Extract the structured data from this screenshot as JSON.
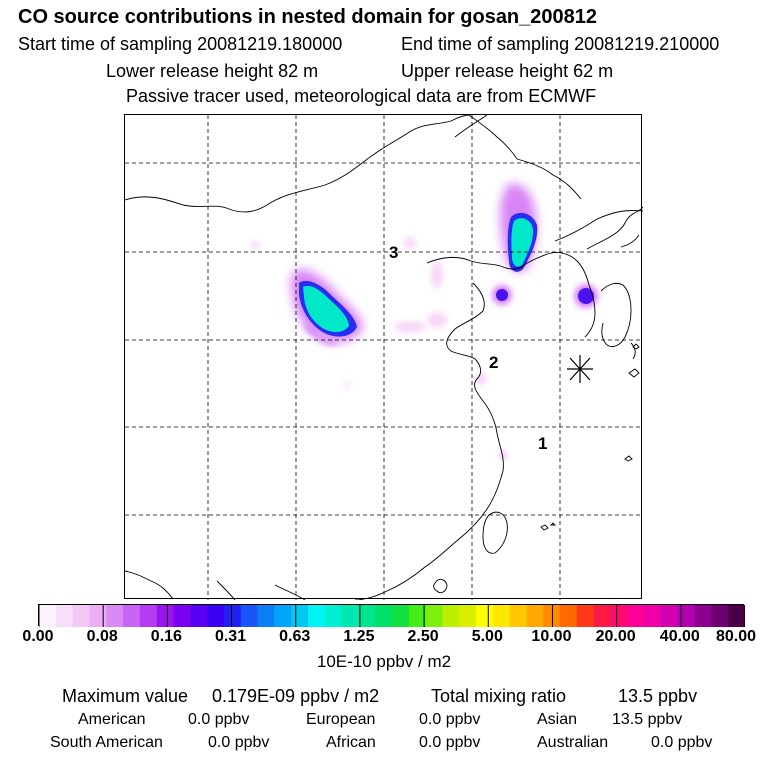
{
  "header": {
    "title": "CO  source contributions in nested domain for gosan_200812",
    "start_label": "Start time of sampling 20081219.180000",
    "end_label": "End time of sampling 20081219.210000",
    "lower_label": "Lower release height   82 m",
    "upper_label": "Upper release height   62 m",
    "tracer_note": "Passive tracer used, meteorological data are from ECMWF"
  },
  "map": {
    "markers": [
      {
        "label": "1"
      },
      {
        "label": "2"
      },
      {
        "label": "3"
      }
    ],
    "receptor_symbol": "asterisk-receptor"
  },
  "colorbar": {
    "ticks": [
      "0.00",
      "0.08",
      "0.16",
      "0.31",
      "0.63",
      "1.25",
      "2.50",
      "5.00",
      "10.00",
      "20.00",
      "40.00",
      "80.00"
    ],
    "unit": "10E-10 ppbv / m2",
    "colors": [
      "#fdf2fd",
      "#f8dff8",
      "#f3c8f5",
      "#eab0f3",
      "#d98af5",
      "#c865f5",
      "#b43cf2",
      "#9a14ef",
      "#7a00f0",
      "#5a00f0",
      "#3a00f2",
      "#2020f6",
      "#1a55f8",
      "#0b7ef8",
      "#00a4f8",
      "#00c8f2",
      "#00f4f4",
      "#00f0d4",
      "#00e8b0",
      "#00e490",
      "#00e066",
      "#10e040",
      "#44ec18",
      "#7cf00a",
      "#b8f000",
      "#d8f000",
      "#ffff00",
      "#ffe800",
      "#ffc800",
      "#ffa800",
      "#ff8a00",
      "#ff6a00",
      "#ff3a1a",
      "#ff1a44",
      "#ff0a70",
      "#ff0098",
      "#ee00a8",
      "#d200b0",
      "#b000b0",
      "#8c0090",
      "#6c0070",
      "#4a0048"
    ]
  },
  "summary": {
    "max_label": "Maximum value",
    "max_value": "0.179E-09 ppbv / m2",
    "total_label": "Total mixing ratio",
    "total_value": "13.5 ppbv",
    "regions": [
      {
        "name": "American",
        "value": "0.0 ppbv"
      },
      {
        "name": "European",
        "value": "0.0 ppbv"
      },
      {
        "name": "Asian",
        "value": "13.5 ppbv"
      },
      {
        "name": "South American",
        "value": "0.0 ppbv"
      },
      {
        "name": "African",
        "value": "0.0 ppbv"
      },
      {
        "name": "Australian",
        "value": "0.0 ppbv"
      }
    ]
  }
}
